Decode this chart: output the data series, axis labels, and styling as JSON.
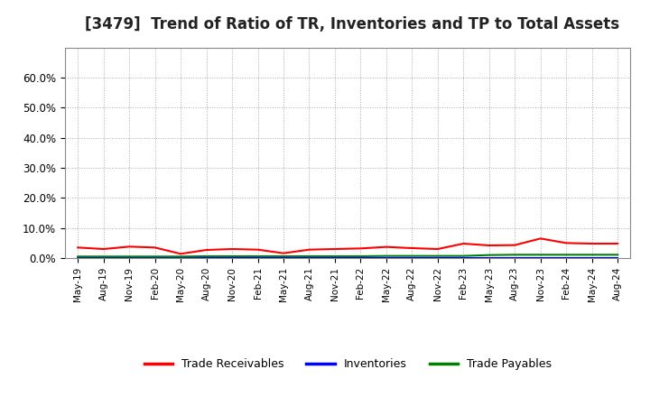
{
  "title": "[3479]  Trend of Ratio of TR, Inventories and TP to Total Assets",
  "title_fontsize": 12,
  "background_color": "#ffffff",
  "plot_background": "#ffffff",
  "grid_color": "#aaaaaa",
  "ylim": [
    0.0,
    0.7
  ],
  "yticks": [
    0.0,
    0.1,
    0.2,
    0.3,
    0.4,
    0.5,
    0.6
  ],
  "x_labels": [
    "May-19",
    "Aug-19",
    "Nov-19",
    "Feb-20",
    "May-20",
    "Aug-20",
    "Nov-20",
    "Feb-21",
    "May-21",
    "Aug-21",
    "Nov-21",
    "Feb-22",
    "May-22",
    "Aug-22",
    "Nov-22",
    "Feb-23",
    "May-23",
    "Aug-23",
    "Nov-23",
    "Feb-24",
    "May-24",
    "Aug-24"
  ],
  "trade_receivables": [
    0.035,
    0.03,
    0.038,
    0.035,
    0.014,
    0.027,
    0.03,
    0.028,
    0.016,
    0.028,
    0.03,
    0.032,
    0.037,
    0.033,
    0.03,
    0.048,
    0.042,
    0.043,
    0.065,
    0.05,
    0.048,
    0.048
  ],
  "inventories": [
    0.001,
    0.001,
    0.001,
    0.001,
    0.001,
    0.001,
    0.001,
    0.001,
    0.001,
    0.001,
    0.001,
    0.001,
    0.001,
    0.001,
    0.001,
    0.001,
    0.001,
    0.001,
    0.001,
    0.001,
    0.001,
    0.001
  ],
  "trade_payables": [
    0.005,
    0.005,
    0.005,
    0.005,
    0.005,
    0.006,
    0.006,
    0.006,
    0.006,
    0.006,
    0.006,
    0.006,
    0.007,
    0.007,
    0.007,
    0.007,
    0.01,
    0.011,
    0.011,
    0.011,
    0.011,
    0.011
  ],
  "tr_color": "#ff0000",
  "inv_color": "#0000ff",
  "tp_color": "#008000",
  "line_width": 1.5,
  "legend_labels": [
    "Trade Receivables",
    "Inventories",
    "Trade Payables"
  ],
  "legend_colors": [
    "#ff0000",
    "#0000ff",
    "#008000"
  ]
}
